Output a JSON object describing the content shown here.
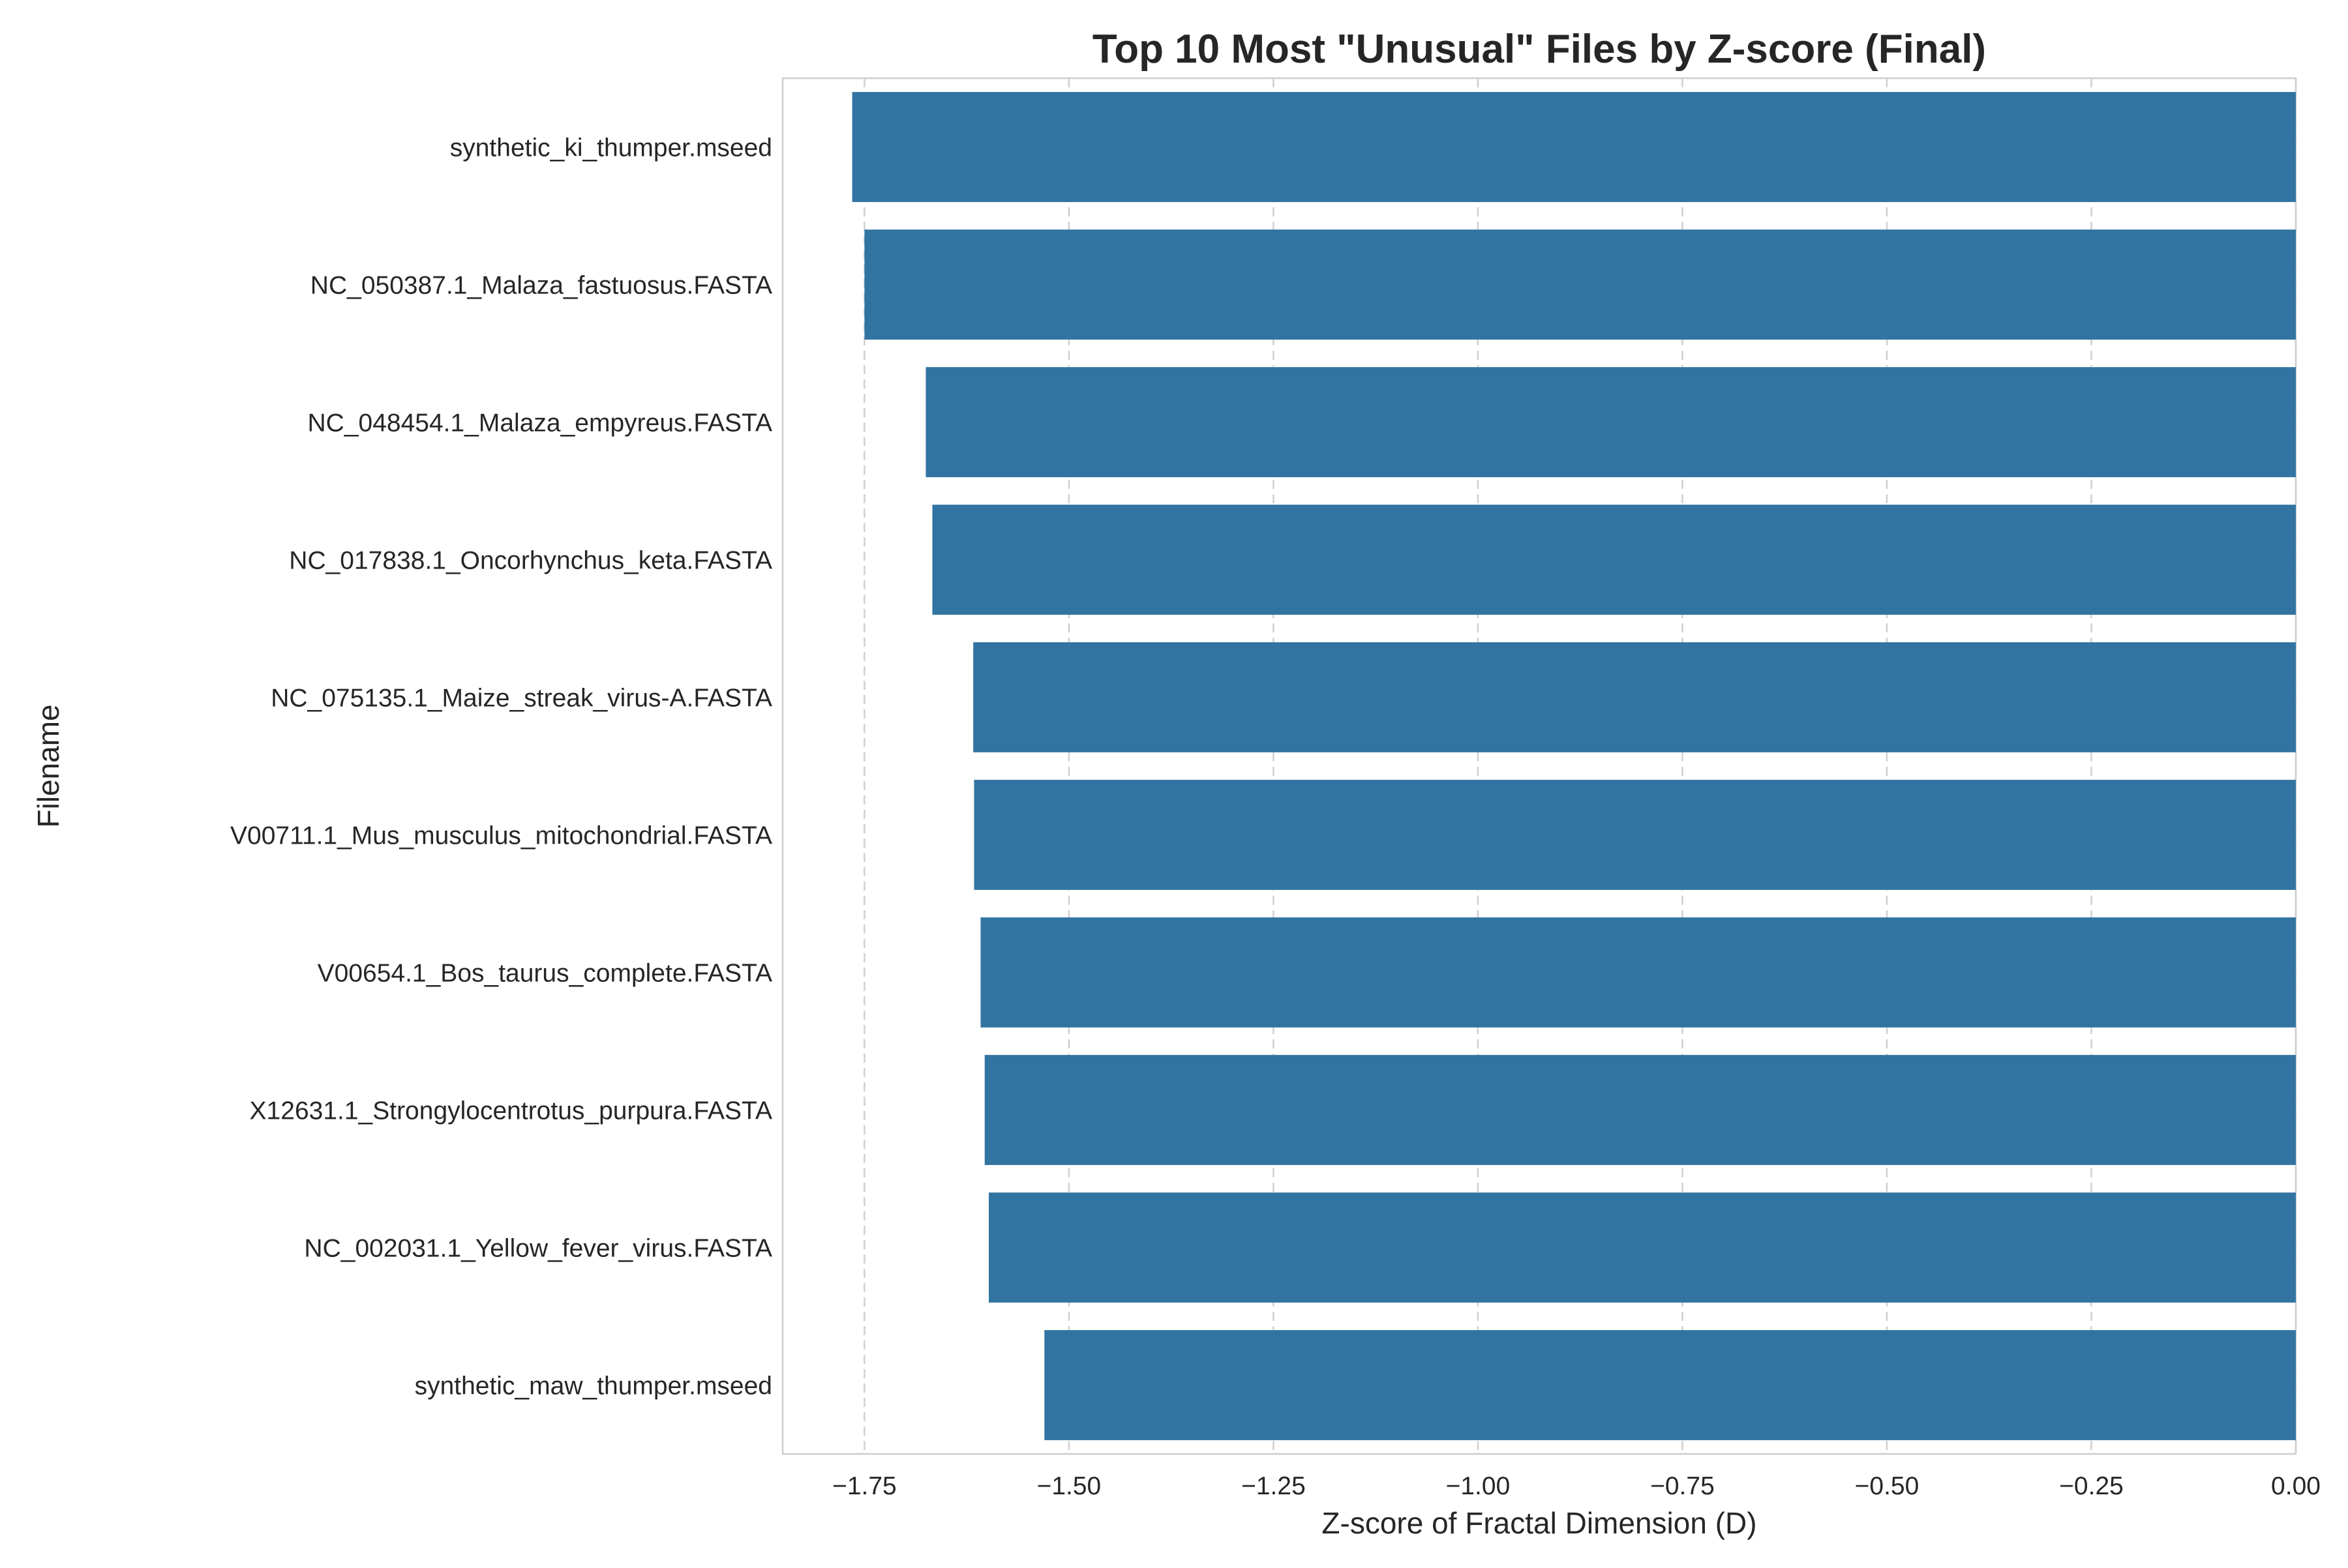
{
  "chart_data": {
    "type": "bar",
    "orientation": "horizontal",
    "title": "Top 10 Most \"Unusual\" Files by Z-score (Final)",
    "xlabel": "Z-score of Fractal Dimension (D)",
    "ylabel": "Filename",
    "xlim": [
      -1.85,
      0.0
    ],
    "xticks": [
      -1.75,
      -1.5,
      -1.25,
      -1.0,
      -0.75,
      -0.5,
      -0.25,
      0.0
    ],
    "xtick_labels": [
      "−1.75",
      "−1.50",
      "−1.25",
      "−1.00",
      "−0.75",
      "−0.50",
      "−0.25",
      "0.00"
    ],
    "grid": "x-dashed",
    "bar_color": "#3274a1",
    "categories": [
      "synthetic_ki_thumper.mseed",
      "NC_050387.1_Malaza_fastuosus.FASTA",
      "NC_048454.1_Malaza_empyreus.FASTA",
      "NC_017838.1_Oncorhynchus_keta.FASTA",
      "NC_075135.1_Maize_streak_virus-A.FASTA",
      "V00711.1_Mus_musculus_mitochondrial.FASTA",
      "V00654.1_Bos_taurus_complete.FASTA",
      "X12631.1_Strongylocentrotus_purpura.FASTA",
      "NC_002031.1_Yellow_fever_virus.FASTA",
      "synthetic_maw_thumper.mseed"
    ],
    "values": [
      -1.765,
      -1.75,
      -1.675,
      -1.667,
      -1.617,
      -1.616,
      -1.608,
      -1.603,
      -1.598,
      -1.53
    ]
  }
}
